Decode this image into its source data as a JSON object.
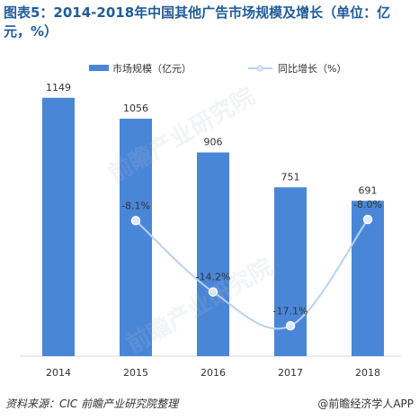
{
  "header": {
    "title": "图表5：2014-2018年中国其他广告市场规模及增长（单位：亿元，%）"
  },
  "legend": {
    "bar_label": "市场规模（亿元）",
    "line_label": "同比增长（%）"
  },
  "footer": {
    "source": "资料来源：CIC  前瞻产业研究院整理",
    "brand": "@前瞻经济学人APP"
  },
  "watermark": {
    "text": "前瞻产业研究院"
  },
  "colors": {
    "bar": "#4a86d8",
    "line": "#b8d3ee",
    "marker": "#dbe8f6",
    "title": "#1f5c99"
  },
  "chart_data": {
    "type": "bar",
    "categories": [
      "2014",
      "2015",
      "2016",
      "2017",
      "2018"
    ],
    "series": [
      {
        "name": "市场规模（亿元）",
        "type": "bar",
        "values": [
          1149,
          1056,
          906,
          751,
          691
        ],
        "labels": [
          "1149",
          "1056",
          "906",
          "751",
          "691"
        ]
      },
      {
        "name": "同比增长（%）",
        "type": "line",
        "values": [
          null,
          -8.1,
          -14.2,
          -17.1,
          -8.0
        ],
        "labels": [
          "",
          "-8.1%",
          "-14.2%",
          "-17.1%",
          "-8.0%"
        ]
      }
    ],
    "title": "图表5：2014-2018年中国其他广告市场规模及增长（单位：亿元，%）",
    "xlabel": "",
    "ylabel": "",
    "ylim": [
      0,
      1200
    ],
    "y2lim": [
      -20,
      0
    ],
    "grid": false,
    "legend": "top"
  }
}
